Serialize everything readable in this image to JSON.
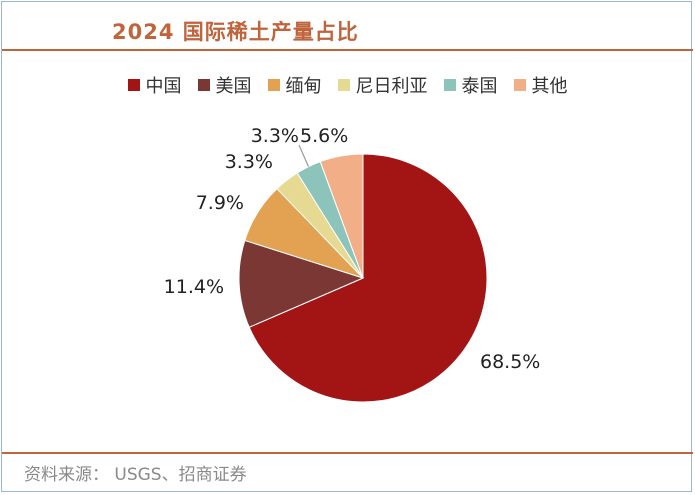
{
  "title": "2024 国际稀土产量占比",
  "source": "资料来源：  USGS、招商证券",
  "chart_data": {
    "type": "pie",
    "title": "2024 国际稀土产量占比",
    "legend_position": "top",
    "slices": [
      {
        "name": "中国",
        "value": 68.5,
        "label": "68.5%",
        "color": "#a31515"
      },
      {
        "name": "美国",
        "value": 11.4,
        "label": "11.4%",
        "color": "#7b3734"
      },
      {
        "name": "缅甸",
        "value": 7.9,
        "label": "7.9%",
        "color": "#e3a152"
      },
      {
        "name": "尼日利亚",
        "value": 3.3,
        "label": "3.3%",
        "color": "#e6d991"
      },
      {
        "name": "泰国",
        "value": 3.3,
        "label": "3.3%",
        "color": "#8cc4bb"
      },
      {
        "name": "其他",
        "value": 5.6,
        "label": "5.6%",
        "color": "#f2ae86"
      }
    ]
  }
}
